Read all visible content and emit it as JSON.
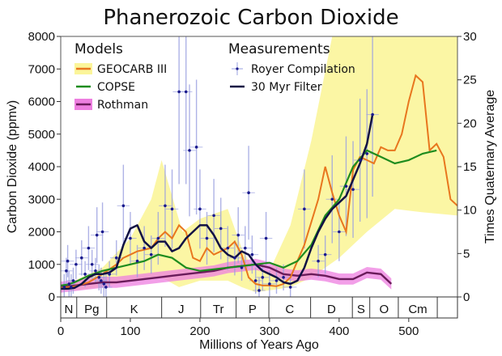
{
  "chart_data": {
    "type": "line",
    "title": "Phanerozoic Carbon Dioxide",
    "xlabel": "Millions of Years Ago",
    "ylabel": "Carbon Dioxide (ppmv)",
    "y2label": "Times Quaternary Average",
    "xlim": [
      0,
      570
    ],
    "ylim": [
      0,
      8000
    ],
    "y2lim": [
      0,
      30
    ],
    "xticks": [
      "0",
      "100",
      "200",
      "300",
      "400",
      "500"
    ],
    "yticks": [
      "0",
      "1000",
      "2000",
      "3000",
      "4000",
      "5000",
      "6000",
      "7000",
      "8000"
    ],
    "y2ticks": [
      "0",
      "5",
      "10",
      "15",
      "20",
      "25",
      "30"
    ],
    "grid": false,
    "legend": {
      "models_heading": "Models",
      "measurements_heading": "Measurements",
      "placement": "top-left"
    },
    "periods": [
      {
        "label": "N",
        "start": 0,
        "end": 23
      },
      {
        "label": "Pg",
        "start": 23,
        "end": 66
      },
      {
        "label": "K",
        "start": 66,
        "end": 145
      },
      {
        "label": "J",
        "start": 145,
        "end": 201
      },
      {
        "label": "Tr",
        "start": 201,
        "end": 252
      },
      {
        "label": "P",
        "start": 252,
        "end": 299
      },
      {
        "label": "C",
        "start": 299,
        "end": 359
      },
      {
        "label": "D",
        "start": 359,
        "end": 419
      },
      {
        "label": "S",
        "start": 419,
        "end": 444
      },
      {
        "label": "O",
        "start": 444,
        "end": 485
      },
      {
        "label": "Cm",
        "start": 485,
        "end": 541
      },
      {
        "label": "",
        "start": 541,
        "end": 570
      }
    ],
    "series": [
      {
        "name": "GEOCARB III",
        "group": "models",
        "color": "#e8761e",
        "band_color": "#fbf59a",
        "band": {
          "x": [
            0,
            10,
            30,
            60,
            100,
            130,
            145,
            175,
            200,
            240,
            260,
            275,
            300,
            330,
            360,
            390,
            420,
            480,
            520,
            570,
            570,
            520,
            480,
            440,
            400,
            360,
            330,
            300,
            280,
            260,
            240,
            200,
            170,
            145,
            100,
            60,
            20,
            0
          ],
          "y": [
            300,
            400,
            600,
            900,
            1800,
            3000,
            4200,
            2000,
            2400,
            2700,
            1500,
            900,
            800,
            2200,
            4800,
            8000,
            8000,
            8000,
            8000,
            8000,
            2500,
            2600,
            2700,
            2000,
            1200,
            600,
            300,
            200,
            150,
            300,
            500,
            500,
            300,
            600,
            500,
            300,
            200,
            200
          ]
        },
        "x": [
          0,
          10,
          20,
          40,
          60,
          70,
          80,
          90,
          100,
          110,
          120,
          130,
          140,
          150,
          160,
          170,
          180,
          190,
          200,
          210,
          220,
          230,
          240,
          250,
          260,
          270,
          280,
          290,
          300,
          310,
          320,
          330,
          340,
          350,
          360,
          370,
          380,
          390,
          400,
          410,
          420,
          430,
          440,
          450,
          460,
          470,
          480,
          490,
          500,
          510,
          520,
          530,
          540,
          550,
          560,
          570
        ],
        "y": [
          280,
          300,
          320,
          450,
          700,
          850,
          1000,
          1200,
          1300,
          1400,
          1450,
          1500,
          1800,
          2000,
          1800,
          2200,
          2000,
          1200,
          1100,
          1500,
          1300,
          1400,
          1500,
          1700,
          1300,
          600,
          400,
          350,
          350,
          330,
          400,
          600,
          1100,
          1600,
          2300,
          3000,
          4000,
          3200,
          2500,
          2000,
          3900,
          4300,
          4200,
          4100,
          4600,
          4500,
          4500,
          5000,
          6000,
          6800,
          6600,
          4500,
          4700,
          4300,
          3000,
          2800
        ]
      },
      {
        "name": "COPSE",
        "group": "models",
        "color": "#1e8c1e",
        "x": [
          0,
          10,
          20,
          40,
          60,
          80,
          100,
          120,
          140,
          160,
          180,
          200,
          220,
          240,
          260,
          280,
          300,
          320,
          340,
          360,
          380,
          400,
          420,
          440,
          460,
          480,
          500,
          520,
          540
        ],
        "y": [
          350,
          380,
          450,
          650,
          800,
          900,
          1000,
          1100,
          1300,
          1200,
          900,
          800,
          850,
          900,
          950,
          1000,
          1050,
          900,
          1100,
          1600,
          2500,
          3000,
          4000,
          4500,
          4300,
          4100,
          4200,
          4400,
          4500
        ]
      },
      {
        "name": "Rothman",
        "group": "models",
        "color": "#6a1b5a",
        "band_color": "#ee7fe0",
        "x": [
          0,
          20,
          40,
          60,
          80,
          100,
          120,
          140,
          160,
          180,
          200,
          220,
          240,
          260,
          280,
          300,
          320,
          340,
          360,
          380,
          400,
          420,
          440,
          460,
          475
        ],
        "y": [
          300,
          350,
          400,
          450,
          450,
          500,
          550,
          600,
          650,
          700,
          750,
          800,
          900,
          950,
          1000,
          900,
          700,
          650,
          700,
          650,
          550,
          550,
          750,
          700,
          400
        ]
      },
      {
        "name": "Royer Compilation",
        "group": "measurements",
        "color": "#1a1a8c",
        "errorbar_color": "#9aa0e0",
        "points": [
          {
            "x": 5,
            "y": 300
          },
          {
            "x": 8,
            "y": 800
          },
          {
            "x": 10,
            "y": 1100
          },
          {
            "x": 12,
            "y": 400
          },
          {
            "x": 15,
            "y": 300
          },
          {
            "x": 18,
            "y": 500
          },
          {
            "x": 22,
            "y": 1000
          },
          {
            "x": 30,
            "y": 1200
          },
          {
            "x": 35,
            "y": 700
          },
          {
            "x": 40,
            "y": 1500
          },
          {
            "x": 45,
            "y": 1000
          },
          {
            "x": 50,
            "y": 800
          },
          {
            "x": 52,
            "y": 1900
          },
          {
            "x": 55,
            "y": 600
          },
          {
            "x": 58,
            "y": 500
          },
          {
            "x": 60,
            "y": 2000
          },
          {
            "x": 62,
            "y": 400
          },
          {
            "x": 65,
            "y": 300
          },
          {
            "x": 70,
            "y": 700
          },
          {
            "x": 80,
            "y": 1200
          },
          {
            "x": 90,
            "y": 2800
          },
          {
            "x": 100,
            "y": 1800
          },
          {
            "x": 110,
            "y": 1100
          },
          {
            "x": 120,
            "y": 1500
          },
          {
            "x": 130,
            "y": 1300
          },
          {
            "x": 140,
            "y": 1800
          },
          {
            "x": 150,
            "y": 2800
          },
          {
            "x": 160,
            "y": 2700
          },
          {
            "x": 170,
            "y": 6300
          },
          {
            "x": 180,
            "y": 6300
          },
          {
            "x": 185,
            "y": 4500
          },
          {
            "x": 195,
            "y": 4600
          },
          {
            "x": 200,
            "y": 2700
          },
          {
            "x": 210,
            "y": 1800
          },
          {
            "x": 220,
            "y": 2500
          },
          {
            "x": 230,
            "y": 2100
          },
          {
            "x": 240,
            "y": 1500
          },
          {
            "x": 250,
            "y": 1200
          },
          {
            "x": 255,
            "y": 1900
          },
          {
            "x": 260,
            "y": 900
          },
          {
            "x": 265,
            "y": 1500
          },
          {
            "x": 270,
            "y": 3200
          },
          {
            "x": 275,
            "y": 1300
          },
          {
            "x": 280,
            "y": 500
          },
          {
            "x": 285,
            "y": 200
          },
          {
            "x": 290,
            "y": 600
          },
          {
            "x": 295,
            "y": 1800
          },
          {
            "x": 300,
            "y": 400
          },
          {
            "x": 310,
            "y": 500
          },
          {
            "x": 320,
            "y": 600
          },
          {
            "x": 330,
            "y": 300
          },
          {
            "x": 350,
            "y": 2700
          },
          {
            "x": 370,
            "y": 1100
          },
          {
            "x": 380,
            "y": 1300
          },
          {
            "x": 390,
            "y": 3000
          },
          {
            "x": 400,
            "y": 2000
          },
          {
            "x": 410,
            "y": 3400
          },
          {
            "x": 420,
            "y": 3300
          },
          {
            "x": 430,
            "y": 4200
          },
          {
            "x": 440,
            "y": 4400
          },
          {
            "x": 448,
            "y": 5600
          }
        ]
      },
      {
        "name": "30 Myr Filter",
        "group": "measurements",
        "color": "#111144",
        "x": [
          0,
          10,
          20,
          30,
          40,
          50,
          60,
          70,
          80,
          90,
          100,
          110,
          120,
          130,
          140,
          150,
          160,
          170,
          180,
          190,
          200,
          210,
          220,
          230,
          240,
          250,
          260,
          270,
          280,
          290,
          300,
          310,
          320,
          330,
          340,
          350,
          360,
          370,
          380,
          390,
          400,
          410,
          420,
          430,
          440,
          448
        ],
        "y": [
          250,
          250,
          280,
          400,
          600,
          700,
          700,
          750,
          900,
          1600,
          2100,
          2200,
          1700,
          1500,
          1700,
          1700,
          1400,
          1500,
          1800,
          2000,
          2200,
          2200,
          1900,
          1500,
          1300,
          1200,
          1400,
          1300,
          1000,
          800,
          700,
          600,
          450,
          400,
          500,
          900,
          1500,
          2000,
          2400,
          2700,
          2900,
          3100,
          3600,
          4100,
          4700,
          5600
        ]
      }
    ]
  }
}
